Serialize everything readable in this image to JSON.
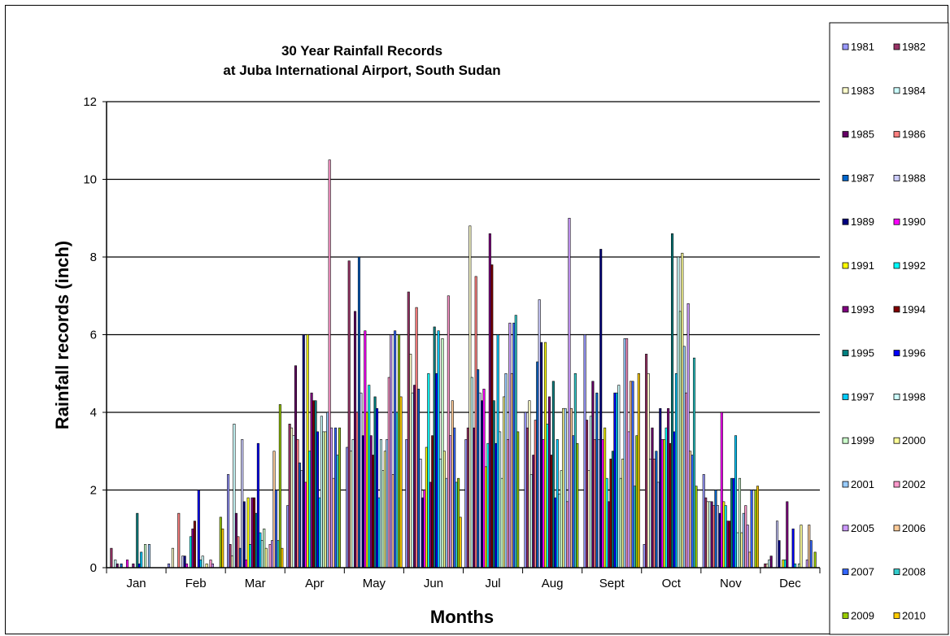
{
  "chart_data": {
    "type": "bar",
    "title": [
      "30 Year Rainfall Records",
      "at Juba International Airport, South Sudan"
    ],
    "xlabel": "Months",
    "ylabel": "Rainfall records (inch)",
    "categories": [
      "Jan",
      "Feb",
      "Mar",
      "Apr",
      "May",
      "Jun",
      "Jul",
      "Aug",
      "Sept",
      "Oct",
      "Nov",
      "Dec"
    ],
    "ylim": [
      0,
      12
    ],
    "yticks": [
      "0",
      "2",
      "4",
      "6",
      "8",
      "10",
      "12"
    ],
    "grid": true,
    "legend_position": "right",
    "series": [
      {
        "name": "1981",
        "color": "#9999ff",
        "values": [
          0.0,
          0.1,
          2.4,
          1.6,
          3.1,
          3.3,
          3.3,
          4.0,
          6.0,
          0.6,
          2.4,
          0.0
        ]
      },
      {
        "name": "1982",
        "color": "#993366",
        "values": [
          0.5,
          0.0,
          0.6,
          3.7,
          7.9,
          7.1,
          3.6,
          3.6,
          3.8,
          5.5,
          1.8,
          0.1
        ]
      },
      {
        "name": "1983",
        "color": "#ffffcc",
        "values": [
          0.0,
          0.5,
          0.3,
          3.6,
          3.0,
          5.5,
          8.8,
          4.3,
          2.5,
          5.0,
          1.7,
          0.1
        ]
      },
      {
        "name": "1984",
        "color": "#ccffff",
        "values": [
          0.2,
          0.0,
          3.7,
          3.4,
          3.3,
          4.5,
          4.9,
          2.4,
          3.9,
          2.8,
          1.7,
          0.2
        ]
      },
      {
        "name": "1985",
        "color": "#660066",
        "values": [
          0.1,
          0.0,
          1.4,
          5.2,
          6.6,
          4.7,
          3.6,
          2.9,
          4.8,
          3.6,
          1.7,
          0.3
        ]
      },
      {
        "name": "1986",
        "color": "#ff8080",
        "values": [
          0.0,
          1.4,
          0.8,
          3.3,
          4.0,
          6.7,
          7.5,
          3.8,
          3.3,
          2.8,
          1.6,
          0.0
        ]
      },
      {
        "name": "1987",
        "color": "#0066cc",
        "values": [
          0.1,
          0.0,
          0.5,
          2.7,
          8.0,
          4.6,
          5.1,
          5.3,
          4.5,
          3.0,
          2.0,
          0.0
        ]
      },
      {
        "name": "1988",
        "color": "#ccccff",
        "values": [
          0.0,
          0.3,
          3.3,
          2.5,
          4.5,
          2.8,
          4.5,
          6.9,
          3.3,
          2.2,
          1.6,
          1.2
        ]
      },
      {
        "name": "1989",
        "color": "#000080",
        "values": [
          0.0,
          0.3,
          1.7,
          6.0,
          3.4,
          1.8,
          4.3,
          5.8,
          8.2,
          4.1,
          1.4,
          0.7
        ]
      },
      {
        "name": "1990",
        "color": "#ff00ff",
        "values": [
          0.2,
          0.1,
          0.2,
          2.2,
          6.1,
          2.0,
          4.6,
          3.3,
          3.3,
          3.3,
          4.0,
          0.0
        ]
      },
      {
        "name": "1991",
        "color": "#ffff00",
        "values": [
          0.0,
          0.0,
          1.8,
          6.0,
          4.0,
          3.1,
          2.6,
          5.8,
          3.6,
          3.3,
          1.7,
          0.2
        ]
      },
      {
        "name": "1992",
        "color": "#00ffff",
        "values": [
          0.0,
          0.8,
          0.6,
          3.0,
          4.7,
          5.0,
          3.2,
          3.7,
          2.3,
          3.6,
          1.6,
          0.2
        ]
      },
      {
        "name": "1993",
        "color": "#800080",
        "values": [
          0.1,
          1.0,
          1.8,
          4.5,
          3.4,
          2.2,
          8.6,
          4.4,
          1.7,
          4.1,
          1.2,
          1.7
        ]
      },
      {
        "name": "1994",
        "color": "#800000",
        "values": [
          0.0,
          1.2,
          1.8,
          4.3,
          2.9,
          3.4,
          7.8,
          2.9,
          2.8,
          3.2,
          1.2,
          0.0
        ]
      },
      {
        "name": "1995",
        "color": "#008080",
        "values": [
          1.4,
          0.0,
          1.4,
          4.3,
          4.4,
          6.2,
          4.3,
          4.8,
          3.0,
          8.6,
          2.3,
          0.0
        ]
      },
      {
        "name": "1996",
        "color": "#0000ff",
        "values": [
          0.1,
          2.0,
          3.2,
          3.5,
          4.1,
          5.0,
          3.2,
          1.8,
          4.5,
          3.5,
          2.3,
          1.0
        ]
      },
      {
        "name": "1997",
        "color": "#00ccff",
        "values": [
          0.4,
          0.2,
          0.9,
          1.8,
          1.8,
          6.1,
          6.0,
          3.3,
          4.5,
          5.0,
          3.4,
          0.1
        ]
      },
      {
        "name": "1998",
        "color": "#ccffff",
        "values": [
          0.0,
          0.3,
          0.7,
          3.9,
          3.3,
          2.8,
          3.5,
          1.9,
          4.7,
          8.0,
          0.9,
          0.0
        ]
      },
      {
        "name": "1999",
        "color": "#ccffcc",
        "values": [
          0.6,
          0.0,
          1.0,
          3.5,
          2.5,
          5.9,
          2.3,
          2.5,
          2.3,
          6.6,
          2.3,
          0.1
        ]
      },
      {
        "name": "2000",
        "color": "#ffff99",
        "values": [
          0.0,
          0.1,
          0.5,
          3.5,
          3.0,
          3.0,
          4.4,
          4.1,
          2.8,
          8.1,
          0.9,
          1.1
        ]
      },
      {
        "name": "2001",
        "color": "#99ccff",
        "values": [
          0.6,
          0.0,
          0.0,
          4.0,
          3.3,
          2.3,
          5.0,
          4.1,
          5.9,
          5.7,
          1.4,
          0.0
        ]
      },
      {
        "name": "2002",
        "color": "#ff99cc",
        "values": [
          0.0,
          0.2,
          0.6,
          10.5,
          4.9,
          7.0,
          3.3,
          1.7,
          5.9,
          4.5,
          1.6,
          0.0
        ]
      },
      {
        "name": "2005",
        "color": "#cc99ff",
        "values": [
          0.0,
          0.1,
          0.7,
          3.6,
          6.0,
          3.4,
          6.3,
          9.0,
          3.5,
          6.8,
          1.1,
          0.2
        ]
      },
      {
        "name": "2006",
        "color": "#ffcc99",
        "values": [
          0.0,
          0.0,
          3.0,
          2.3,
          2.4,
          4.3,
          5.0,
          4.1,
          4.8,
          3.0,
          0.4,
          1.1
        ]
      },
      {
        "name": "2007",
        "color": "#3366ff",
        "values": [
          0.0,
          0.0,
          2.0,
          3.6,
          6.1,
          3.6,
          6.3,
          3.4,
          4.8,
          2.9,
          2.0,
          0.7
        ]
      },
      {
        "name": "2008",
        "color": "#33cccc",
        "values": [
          0.0,
          0.0,
          0.7,
          2.9,
          4.0,
          2.2,
          6.5,
          5.0,
          2.1,
          5.4,
          0.0,
          0.0
        ]
      },
      {
        "name": "2009",
        "color": "#99cc00",
        "values": [
          0.0,
          1.3,
          4.2,
          3.6,
          6.0,
          2.3,
          3.5,
          3.2,
          3.4,
          2.1,
          2.0,
          0.4
        ]
      },
      {
        "name": "2010",
        "color": "#ffcc00",
        "values": [
          0.0,
          1.0,
          0.5,
          0.0,
          4.4,
          1.3,
          0.0,
          0.0,
          5.0,
          0.0,
          2.1,
          0.0
        ]
      }
    ]
  }
}
